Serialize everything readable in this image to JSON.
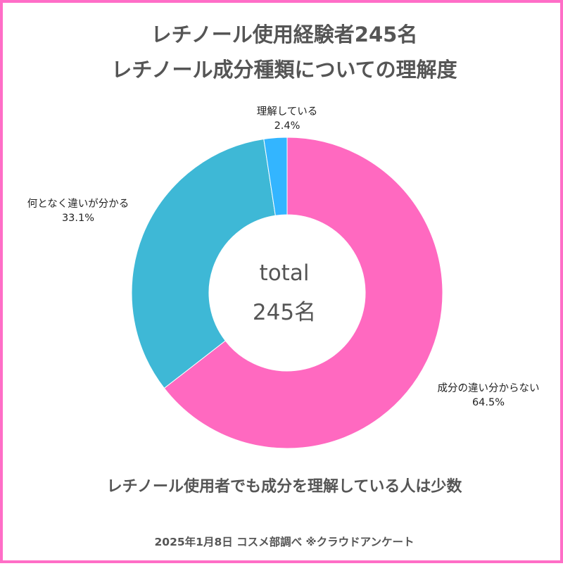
{
  "chart_data": {
    "type": "pie",
    "style": "donut",
    "title_lines": [
      "レチノール使用経験者245名",
      "レチノール成分種類についての理解度"
    ],
    "center": {
      "label": "total",
      "value": "245名"
    },
    "slices": [
      {
        "label": "成分の違い分からない",
        "value": 64.5,
        "value_label": "64.5%",
        "color": "#ff69c0"
      },
      {
        "label": "何となく違いが分かる",
        "value": 33.1,
        "value_label": "33.1%",
        "color": "#3eb8d6"
      },
      {
        "label": "理解している",
        "value": 2.4,
        "value_label": "2.4%",
        "color": "#33b5ff"
      }
    ],
    "caption": "レチノール使用者でも成分を理解している人は少数",
    "footer": "2025年1月8日 コスメ部調べ ※クラウドアンケート",
    "frame_color": "#ff6ec7"
  }
}
